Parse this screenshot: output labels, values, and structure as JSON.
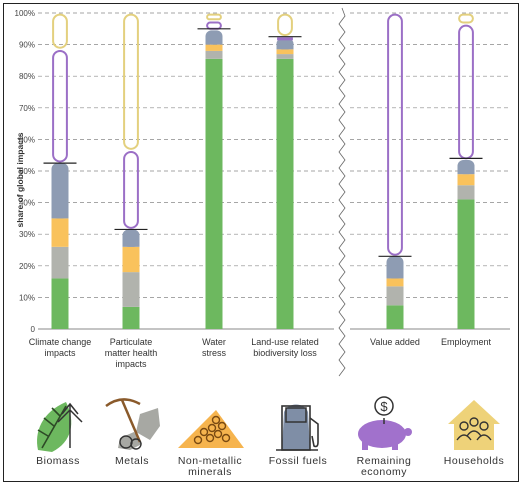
{
  "chart_data": {
    "type": "bar",
    "stacked": true,
    "ylabel": "share of global impacts",
    "ylim": [
      0,
      100
    ],
    "yticks": [
      "0",
      "10%",
      "20%",
      "30%",
      "40%",
      "50%",
      "60%",
      "70%",
      "80%",
      "90%",
      "100%"
    ],
    "grid": true,
    "categories": [
      "Climate change impacts",
      "Particulate matter health impacts",
      "Water stress",
      "Land-use related biodiversity loss",
      "Value added",
      "Employment"
    ],
    "category_labels": [
      "Climate change\nimpacts",
      "Particulate\nmatter health\nimpacts",
      "Water\nstress",
      "Land-use related\nbiodiversity loss",
      "Value added",
      "Employment"
    ],
    "series": [
      {
        "name": "Biomass",
        "color": "#6db85f",
        "values": [
          16,
          7,
          85.5,
          85.5,
          7.5,
          41
        ]
      },
      {
        "name": "Metals",
        "color": "#b1b3ad",
        "values": [
          10,
          11,
          2.5,
          1.5,
          6,
          4.5
        ]
      },
      {
        "name": "Non-metallic minerals",
        "color": "#f9c25c",
        "values": [
          9,
          8,
          2,
          1.5,
          2.5,
          3.5
        ]
      },
      {
        "name": "Fossil fuels",
        "color": "#8e9cb3",
        "values": [
          17.5,
          5.5,
          4.5,
          3.5,
          7,
          4.5
        ]
      },
      {
        "name": "Remaining economy",
        "color": "#9b6fc6",
        "values": [
          36,
          25,
          3,
          0.5,
          77,
          43
        ]
      },
      {
        "name": "Households",
        "color": "#e3d07e",
        "values": [
          11.5,
          43.5,
          2.5,
          7.5,
          0,
          3.5
        ]
      }
    ],
    "markers": [
      52.5,
      31.5,
      95,
      92.5,
      23,
      54
    ],
    "panel_split_after": 3
  },
  "legend": [
    {
      "label": "Biomass",
      "icon": "leaf-icon",
      "color": "#6db85f"
    },
    {
      "label": "Metals",
      "icon": "ore-pickaxe-icon",
      "color": "#a7a8a3"
    },
    {
      "label": "Non-metallic\nminerals",
      "icon": "minerals-pile-icon",
      "color": "#f6b44e"
    },
    {
      "label": "Fossil fuels",
      "icon": "fuel-pump-icon",
      "color": "#7f8ea6"
    },
    {
      "label": "Remaining\neconomy",
      "icon": "piggy-bank-icon",
      "color": "#a171cc"
    },
    {
      "label": "Households",
      "icon": "house-people-icon",
      "color": "#eed279"
    }
  ]
}
